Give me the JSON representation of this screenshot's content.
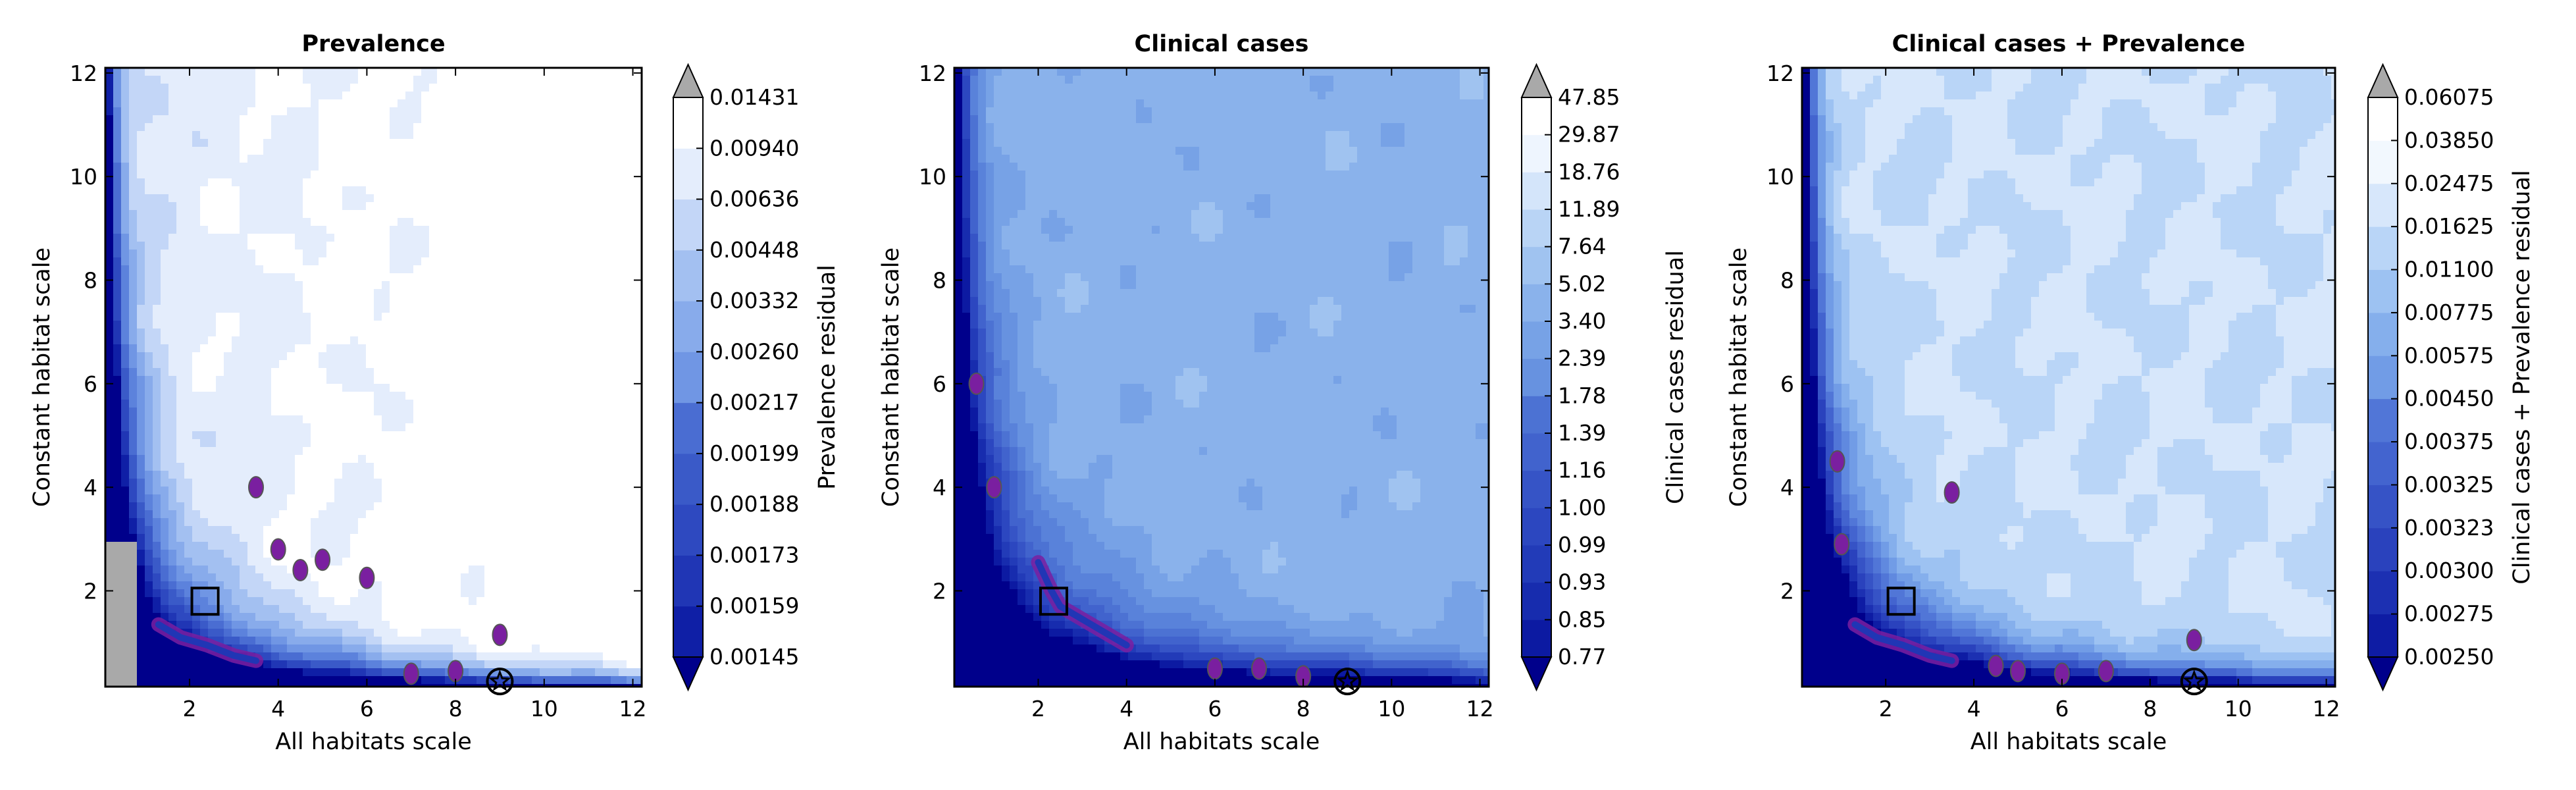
{
  "figure": {
    "title_left": "Prevalence",
    "title_mid": "Clinical cases",
    "title_right": "Clinical cases + Prevalence"
  },
  "chart_data": [
    {
      "type": "heatmap",
      "subtype": "filled-contour",
      "title": "Prevalence",
      "xlabel": "All habitats scale",
      "ylabel": "Constant habitat scale",
      "xlim": [
        0.1,
        12.2
      ],
      "ylim": [
        0.15,
        12.1
      ],
      "xticks": [
        "2",
        "4",
        "6",
        "8",
        "10",
        "12"
      ],
      "yticks": [
        "2",
        "4",
        "6",
        "8",
        "10",
        "12"
      ],
      "colorbar": {
        "label": "Prevalence residual",
        "levels": [
          "0.00145",
          "0.00159",
          "0.00173",
          "0.00188",
          "0.00199",
          "0.00217",
          "0.00260",
          "0.00332",
          "0.00448",
          "0.00636",
          "0.00940",
          "0.01431"
        ],
        "extend": "both",
        "colors": [
          "#00008b",
          "#0f1fa6",
          "#2036b5",
          "#2e49c0",
          "#3a5ac8",
          "#4a6dd2",
          "#5c82dc",
          "#7096e4",
          "#88abeb",
          "#a3c0f1",
          "#c3d6f7",
          "#e4edfc",
          "#ffffff"
        ],
        "under_color": "#00008b",
        "over_color": "#a9a9a9"
      },
      "markers": [
        {
          "shape": "square",
          "x": 2.35,
          "y": 1.8
        },
        {
          "shape": "circled-star",
          "x": 9.0,
          "y": 0.25
        }
      ],
      "highlight_color": "#7a1fa0"
    },
    {
      "type": "heatmap",
      "subtype": "filled-contour",
      "title": "Clinical cases",
      "xlabel": "All habitats scale",
      "ylabel": "Constant habitat scale",
      "xlim": [
        0.1,
        12.2
      ],
      "ylim": [
        0.15,
        12.1
      ],
      "xticks": [
        "2",
        "4",
        "6",
        "8",
        "10",
        "12"
      ],
      "yticks": [
        "2",
        "4",
        "6",
        "8",
        "10",
        "12"
      ],
      "colorbar": {
        "label": "Clinical cases residual",
        "levels": [
          "0.77",
          "0.85",
          "0.93",
          "0.99",
          "1.00",
          "1.16",
          "1.39",
          "1.78",
          "2.39",
          "3.40",
          "5.02",
          "7.64",
          "11.89",
          "18.76",
          "29.87",
          "47.85"
        ],
        "extend": "both",
        "colors": [
          "#00008b",
          "#0c1aa2",
          "#172cae",
          "#223bb8",
          "#2c47c0",
          "#3654c6",
          "#4163cd",
          "#4c72d3",
          "#5982da",
          "#6792e0",
          "#77a2e6",
          "#8ab2eb",
          "#a0c3f0",
          "#b9d4f5",
          "#d4e5fa",
          "#eef5fe",
          "#ffffff"
        ],
        "under_color": "#00008b",
        "over_color": "#a9a9a9"
      },
      "markers": [
        {
          "shape": "square",
          "x": 2.35,
          "y": 1.8
        },
        {
          "shape": "circled-star",
          "x": 9.0,
          "y": 0.25
        }
      ],
      "highlight_color": "#7a1fa0"
    },
    {
      "type": "heatmap",
      "subtype": "filled-contour",
      "title": "Clinical cases + Prevalence",
      "xlabel": "All habitats scale",
      "ylabel": "Constant habitat scale",
      "xlim": [
        0.1,
        12.2
      ],
      "ylim": [
        0.15,
        12.1
      ],
      "xticks": [
        "2",
        "4",
        "6",
        "8",
        "10",
        "12"
      ],
      "yticks": [
        "2",
        "4",
        "6",
        "8",
        "10",
        "12"
      ],
      "colorbar": {
        "label": "Clinical cases + Prevalence residual",
        "levels": [
          "0.00250",
          "0.00275",
          "0.00300",
          "0.00323",
          "0.00325",
          "0.00375",
          "0.00450",
          "0.00575",
          "0.00775",
          "0.01100",
          "0.01625",
          "0.02475",
          "0.03850",
          "0.06075"
        ],
        "extend": "both",
        "colors": [
          "#00008b",
          "#0e1ca4",
          "#1c30b2",
          "#2a42bd",
          "#3653c6",
          "#4364cf",
          "#5176d7",
          "#6089df",
          "#719ce6",
          "#85afec",
          "#9dc2f2",
          "#b9d5f7",
          "#d7e7fb",
          "#f2f8fe",
          "#ffffff"
        ],
        "under_color": "#00008b",
        "over_color": "#a9a9a9"
      },
      "markers": [
        {
          "shape": "square",
          "x": 2.35,
          "y": 1.8
        },
        {
          "shape": "circled-star",
          "x": 9.0,
          "y": 0.25
        }
      ],
      "highlight_color": "#7a1fa0"
    }
  ]
}
